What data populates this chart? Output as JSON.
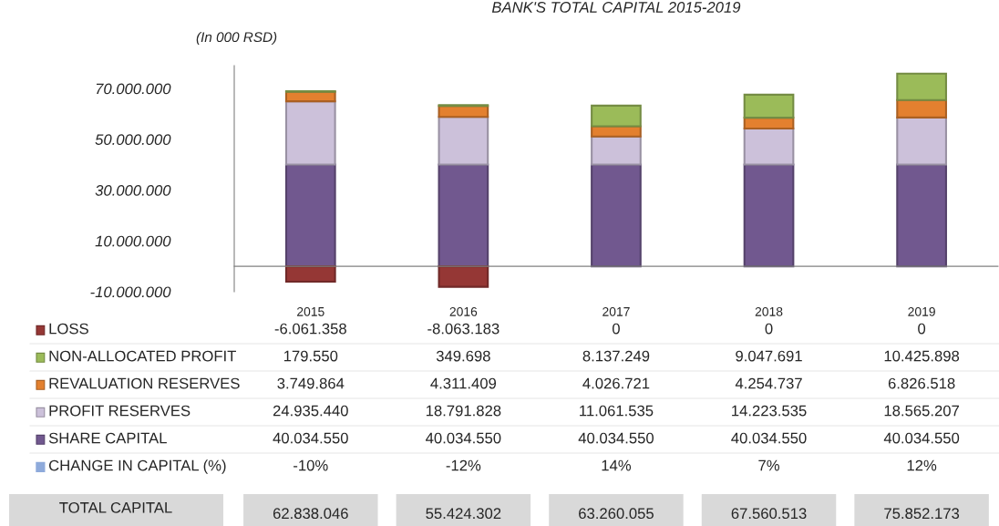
{
  "chart_data": {
    "type": "bar",
    "stacked": true,
    "title": "BANK'S TOTAL CAPITAL 2015-2019",
    "ylabel": "(In 000 RSD)",
    "categories": [
      "2015",
      "2016",
      "2017",
      "2018",
      "2019"
    ],
    "series": [
      {
        "name": "SHARE CAPITAL",
        "color": "#71588f",
        "values": [
          40034550,
          40034550,
          40034550,
          40034550,
          40034550
        ],
        "value_labels": [
          "40.034.550",
          "40.034.550",
          "40.034.550",
          "40.034.550",
          "40.034.550"
        ]
      },
      {
        "name": "PROFIT RESERVES",
        "color": "#ccc1da",
        "values": [
          24935440,
          18791828,
          11061535,
          14223535,
          18565207
        ],
        "value_labels": [
          "24.935.440",
          "18.791.828",
          "11.061.535",
          "14.223.535",
          "18.565.207"
        ]
      },
      {
        "name": "REVALUATION RESERVES",
        "color": "#e3802f",
        "values": [
          3749864,
          4311409,
          4026721,
          4254737,
          6826518
        ],
        "value_labels": [
          "3.749.864",
          "4.311.409",
          "4.026.721",
          "4.254.737",
          "6.826.518"
        ]
      },
      {
        "name": "NON-ALLOCATED PROFIT",
        "color": "#9bbb59",
        "values": [
          179550,
          349698,
          8137249,
          9047691,
          10425898
        ],
        "value_labels": [
          "179.550",
          "349.698",
          "8.137.249",
          "9.047.691",
          "10.425.898"
        ]
      },
      {
        "name": "LOSS",
        "color": "#953735",
        "values": [
          -6061358,
          -8063183,
          0,
          0,
          0
        ],
        "value_labels": [
          "-6.061.358",
          "-8.063.183",
          "0",
          "0",
          "0"
        ]
      }
    ],
    "annotations": [
      "CHANGE IN CAPITAL (%)",
      "-10%",
      "-12%",
      "14%",
      "7%",
      "12%",
      "TOTAL CAPITAL",
      "62.838.046",
      "55.424.302",
      "63.260.055",
      "67.560.513",
      "75.852.173"
    ],
    "ylim": [
      -10000000,
      79000000
    ],
    "yticks": [
      {
        "value": -10000000,
        "label": "-10.000.000"
      },
      {
        "value": 10000000,
        "label": "10.000.000"
      },
      {
        "value": 30000000,
        "label": "30.000.000"
      },
      {
        "value": 50000000,
        "label": "50.000.000"
      },
      {
        "value": 70000000,
        "label": "70.000.000"
      }
    ],
    "grid": false,
    "legend": "left"
  }
}
